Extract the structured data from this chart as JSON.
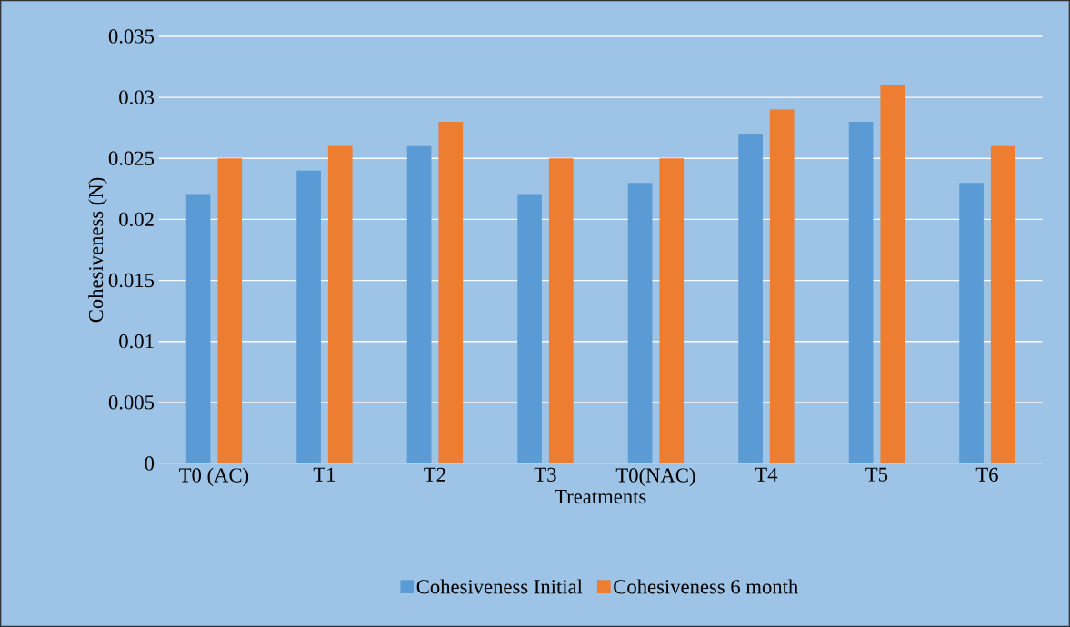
{
  "chart_data": {
    "type": "bar",
    "xlabel": "Treatments",
    "ylabel": "Cohesiveness (N)",
    "categories": [
      "T0 (AC)",
      "T1",
      "T2",
      "T3",
      "T0(NAC)",
      "T4",
      "T5",
      "T6"
    ],
    "series": [
      {
        "name": "Cohesiveness Initial",
        "color": "#5b9bd5",
        "values": [
          0.022,
          0.024,
          0.026,
          0.022,
          0.023,
          0.027,
          0.028,
          0.023
        ]
      },
      {
        "name": "Cohesiveness 6 month",
        "color": "#ed7d31",
        "values": [
          0.025,
          0.026,
          0.028,
          0.025,
          0.025,
          0.029,
          0.031,
          0.026
        ]
      }
    ],
    "ylim": [
      0,
      0.035
    ],
    "yticks": [
      0,
      0.005,
      0.01,
      0.015,
      0.02,
      0.025,
      0.03,
      0.035
    ],
    "grid": "y",
    "legend": "bottom"
  }
}
